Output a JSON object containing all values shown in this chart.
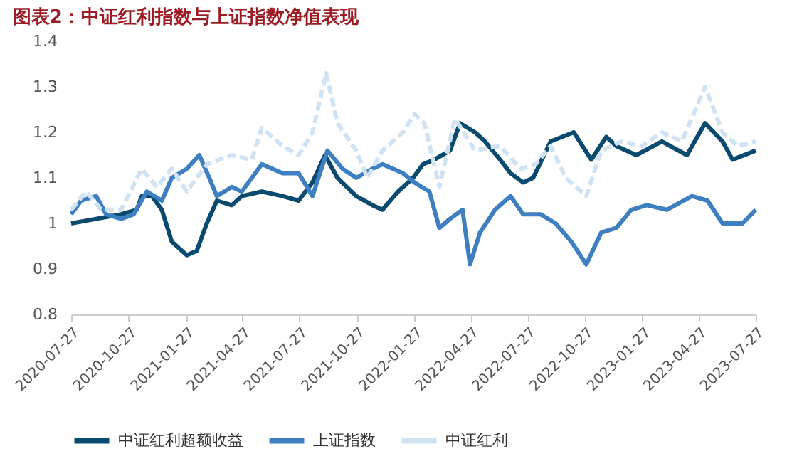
{
  "chart_data": {
    "type": "line",
    "title": "图表2：中证红利指数与上证指数净值表现",
    "xlim": [
      "2020-07-27",
      "2023-07-27"
    ],
    "xticks": [
      "2020-07-27",
      "2020-10-27",
      "2021-01-27",
      "2021-04-27",
      "2021-07-27",
      "2021-10-27",
      "2022-01-27",
      "2022-04-27",
      "2022-07-27",
      "2022-10-27",
      "2023-01-27",
      "2023-04-27",
      "2023-07-27"
    ],
    "ylim": [
      0.8,
      1.4
    ],
    "yticks": [
      0.8,
      0.9,
      1,
      1.1,
      1.2,
      1.3,
      1.4
    ],
    "grid": false,
    "legend": "bottom",
    "series": [
      {
        "name": "中证红利超额收益",
        "color": "#0b4a6f",
        "line_style": "solid",
        "x": [
          "2020-07-27",
          "2020-09-05",
          "2020-10-15",
          "2020-11-09",
          "2020-11-17",
          "2020-12-03",
          "2020-12-19",
          "2021-01-04",
          "2021-01-28",
          "2021-02-13",
          "2021-03-01",
          "2021-03-17",
          "2021-04-10",
          "2021-04-26",
          "2021-05-28",
          "2021-06-30",
          "2021-07-26",
          "2021-08-17",
          "2021-09-06",
          "2021-09-26",
          "2021-10-26",
          "2021-11-21",
          "2021-12-07",
          "2022-01-01",
          "2022-01-25",
          "2022-02-10",
          "2022-02-28",
          "2022-03-25",
          "2022-04-10",
          "2022-05-04",
          "2022-05-20",
          "2022-06-13",
          "2022-06-30",
          "2022-07-20",
          "2022-08-05",
          "2022-09-02",
          "2022-10-09",
          "2022-11-06",
          "2022-11-30",
          "2022-12-16",
          "2023-01-17",
          "2023-02-27",
          "2023-04-08",
          "2023-05-07",
          "2023-06-04",
          "2023-06-20",
          "2023-07-27"
        ],
        "values": [
          1.0,
          1.01,
          1.02,
          1.03,
          1.06,
          1.06,
          1.03,
          0.96,
          0.93,
          0.94,
          1.0,
          1.05,
          1.04,
          1.06,
          1.07,
          1.06,
          1.05,
          1.09,
          1.15,
          1.1,
          1.06,
          1.04,
          1.03,
          1.07,
          1.1,
          1.13,
          1.14,
          1.16,
          1.22,
          1.2,
          1.18,
          1.14,
          1.11,
          1.09,
          1.1,
          1.18,
          1.2,
          1.14,
          1.19,
          1.17,
          1.15,
          1.18,
          1.15,
          1.22,
          1.18,
          1.14,
          1.16
        ]
      },
      {
        "name": "上证指数",
        "color": "#3d7fc1",
        "line_style": "solid",
        "x": [
          "2020-07-27",
          "2020-08-12",
          "2020-09-05",
          "2020-09-21",
          "2020-10-15",
          "2020-11-04",
          "2020-11-25",
          "2020-12-19",
          "2021-01-04",
          "2021-01-28",
          "2021-02-17",
          "2021-03-05",
          "2021-03-17",
          "2021-04-10",
          "2021-04-26",
          "2021-05-28",
          "2021-06-30",
          "2021-07-26",
          "2021-08-17",
          "2021-09-10",
          "2021-10-04",
          "2021-10-26",
          "2021-11-21",
          "2021-12-07",
          "2022-01-09",
          "2022-01-27",
          "2022-02-20",
          "2022-03-08",
          "2022-03-25",
          "2022-04-14",
          "2022-04-26",
          "2022-05-12",
          "2022-06-05",
          "2022-06-30",
          "2022-07-20",
          "2022-08-17",
          "2022-09-10",
          "2022-10-05",
          "2022-10-29",
          "2022-11-22",
          "2022-12-16",
          "2023-01-09",
          "2023-02-03",
          "2023-03-07",
          "2023-04-16",
          "2023-05-11",
          "2023-06-04",
          "2023-07-06",
          "2023-07-27"
        ],
        "values": [
          1.02,
          1.05,
          1.06,
          1.02,
          1.01,
          1.02,
          1.07,
          1.05,
          1.1,
          1.12,
          1.15,
          1.1,
          1.06,
          1.08,
          1.07,
          1.13,
          1.11,
          1.11,
          1.06,
          1.16,
          1.12,
          1.1,
          1.12,
          1.13,
          1.11,
          1.09,
          1.07,
          0.99,
          1.01,
          1.03,
          0.91,
          0.98,
          1.03,
          1.06,
          1.02,
          1.02,
          1.0,
          0.96,
          0.91,
          0.98,
          0.99,
          1.03,
          1.04,
          1.03,
          1.06,
          1.05,
          1.0,
          1.0,
          1.03
        ]
      },
      {
        "name": "中证红利",
        "color": "#cfe3f3",
        "line_style": "dashed",
        "x": [
          "2020-07-27",
          "2020-08-20",
          "2020-09-13",
          "2020-10-15",
          "2020-11-17",
          "2020-12-11",
          "2021-01-04",
          "2021-01-28",
          "2021-03-01",
          "2021-04-10",
          "2021-05-12",
          "2021-05-28",
          "2021-06-30",
          "2021-07-26",
          "2021-08-17",
          "2021-09-08",
          "2021-09-26",
          "2021-10-26",
          "2021-11-13",
          "2021-12-07",
          "2022-01-09",
          "2022-01-27",
          "2022-02-12",
          "2022-03-08",
          "2022-04-02",
          "2022-05-04",
          "2022-06-13",
          "2022-07-16",
          "2022-08-09",
          "2022-09-02",
          "2022-09-26",
          "2022-10-29",
          "2022-11-22",
          "2022-12-24",
          "2023-01-26",
          "2023-02-27",
          "2023-03-31",
          "2023-05-07",
          "2023-06-04",
          "2023-06-28",
          "2023-07-27"
        ],
        "values": [
          1.03,
          1.07,
          1.03,
          1.03,
          1.12,
          1.08,
          1.12,
          1.07,
          1.13,
          1.15,
          1.14,
          1.21,
          1.17,
          1.15,
          1.2,
          1.33,
          1.22,
          1.16,
          1.1,
          1.16,
          1.2,
          1.24,
          1.22,
          1.08,
          1.23,
          1.16,
          1.17,
          1.12,
          1.13,
          1.17,
          1.1,
          1.06,
          1.16,
          1.18,
          1.17,
          1.2,
          1.18,
          1.3,
          1.2,
          1.17,
          1.18
        ]
      }
    ]
  }
}
